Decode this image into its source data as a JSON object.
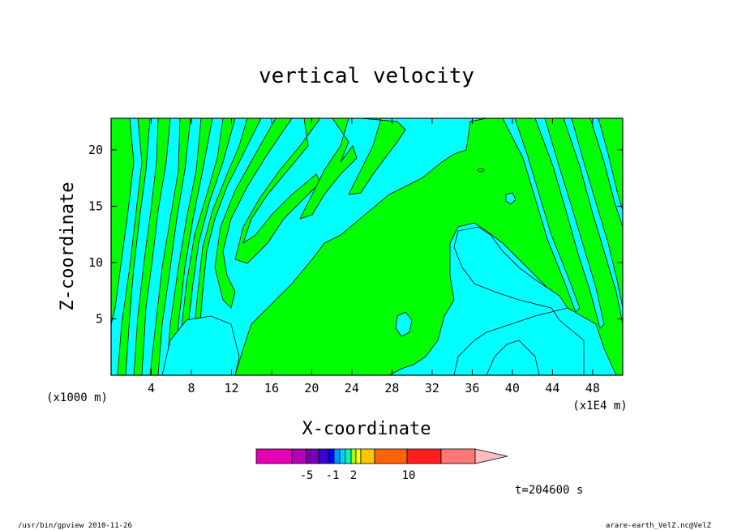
{
  "chart_data": {
    "type": "heatmap",
    "title": "vertical velocity",
    "xlabel": "X-coordinate",
    "ylabel": "Z-coordinate",
    "x_unit_left": "(x1000 m)",
    "x_unit_right": "(x1E4 m)",
    "x_ticks": [
      4,
      8,
      12,
      16,
      20,
      24,
      28,
      32,
      36,
      40,
      44,
      48
    ],
    "y_ticks": [
      5,
      10,
      15,
      20
    ],
    "xlim": [
      0,
      51
    ],
    "ylim": [
      0,
      22.8
    ],
    "colorbar_labels": [
      "-5",
      "-1",
      "2",
      "10"
    ],
    "colorbar_colors": [
      "#e600b4",
      "#b400b4",
      "#7800b4",
      "#3c00d2",
      "#0000ff",
      "#0096ff",
      "#00d2ff",
      "#00ffaa",
      "#aaff00",
      "#ffff00",
      "#ffc800",
      "#ff6400",
      "#ff1e1e",
      "#ff7878",
      "#ffbebe"
    ],
    "colors": {
      "positive": "#00ff00",
      "negative": "#00ffff",
      "contour": "#000000"
    },
    "time_label": "t=204600 s",
    "footer_left": "/usr/bin/gpview  2010-11-26",
    "footer_right": "arare-earth_VelZ.nc@VelZ"
  }
}
